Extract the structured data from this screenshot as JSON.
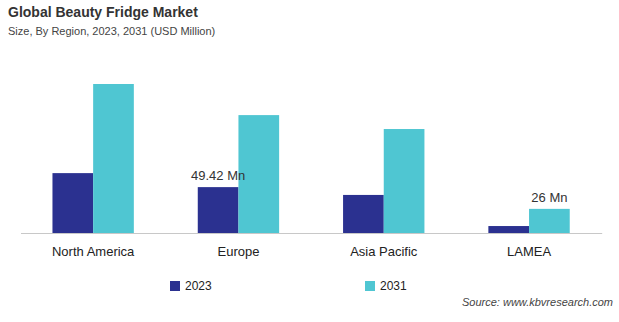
{
  "chart_data": {
    "type": "bar",
    "title": "Global Beauty Fridge Market",
    "subtitle": "Size, By Region, 2023, 2031 (USD Million)",
    "source": "Source: www.kbvresearch.com",
    "categories": [
      "North America",
      "Europe",
      "Asia Pacific",
      "LAMEA"
    ],
    "series": [
      {
        "name": "2023",
        "color": "#2b3190",
        "values": [
          64.5,
          49.42,
          41,
          7.5
        ],
        "value_labels": [
          null,
          "49.42 Mn",
          null,
          null
        ]
      },
      {
        "name": "2031",
        "color": "#4fc6d2",
        "values": [
          160.5,
          127,
          112,
          26
        ],
        "value_labels": [
          null,
          null,
          null,
          "26 Mn"
        ]
      }
    ],
    "data_labels": true,
    "tick_labels": "x",
    "grid": false
  }
}
